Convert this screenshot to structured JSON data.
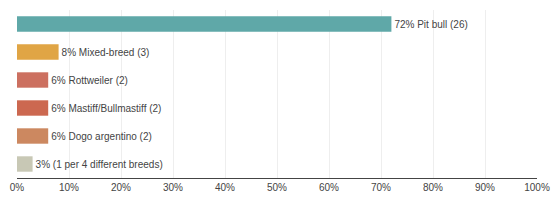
{
  "chart_data": {
    "type": "bar",
    "orientation": "horizontal",
    "categories": [
      "72% Pit bull (26)",
      "8% Mixed-breed (3)",
      "6% Rottweiler (2)",
      "6% Mastiff/Bullmastiff (2)",
      "6% Dogo argentino (2)",
      "3% (1 per 4 different breeds)"
    ],
    "values": [
      72,
      8,
      6,
      6,
      6,
      3
    ],
    "colors": [
      "#5fa8a8",
      "#e0a545",
      "#cc7060",
      "#cc6850",
      "#cc8860",
      "#c8c8b5"
    ],
    "xlim": [
      0,
      100
    ],
    "xticks": [
      {
        "value": 0,
        "label": "0%"
      },
      {
        "value": 10,
        "label": "10%"
      },
      {
        "value": 20,
        "label": "20%"
      },
      {
        "value": 30,
        "label": "30%"
      },
      {
        "value": 40,
        "label": "40%"
      },
      {
        "value": 50,
        "label": "50%"
      },
      {
        "value": 60,
        "label": "60%"
      },
      {
        "value": 70,
        "label": "70%"
      },
      {
        "value": 80,
        "label": "80%"
      },
      {
        "value": 90,
        "label": "90%"
      },
      {
        "value": 100,
        "label": "100%"
      }
    ],
    "grid": true,
    "tick_labels": "x"
  }
}
